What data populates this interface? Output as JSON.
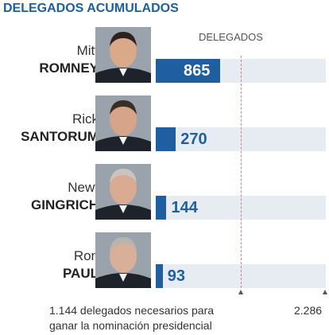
{
  "header": {
    "title": "DELEGADOS ACUMULADOS",
    "column_label": "DELEGADOS"
  },
  "footer": {
    "threshold_line1": "1.144 delegados necesarios para",
    "threshold_line2": "ganar la nominación presidencial",
    "total_label": "2.286"
  },
  "chart_data": {
    "type": "bar",
    "title": "DELEGADOS ACUMULADOS",
    "ylabel": "DELEGADOS",
    "categories": [
      "Mitt ROMNEY",
      "Rick SANTORUM",
      "Newt GINGRICH",
      "Ron PAUL"
    ],
    "values": [
      865,
      270,
      144,
      93
    ],
    "value_labels": [
      "865",
      "270",
      "144",
      "93"
    ],
    "ylim": [
      0,
      2286
    ],
    "threshold": 1144,
    "orientation": "horizontal",
    "grid": false
  },
  "candidates": [
    {
      "first": "Mitt",
      "last": "ROMNEY"
    },
    {
      "first": "Rick",
      "last": "SANTORUM"
    },
    {
      "first": "Newt",
      "last": "GINGRICH"
    },
    {
      "first": "Ron",
      "last": "PAUL"
    }
  ],
  "colors": {
    "bar": "#1f5fa0",
    "track": "#e6ecf1",
    "threshold": "#d98080",
    "title": "#1f5fa0"
  }
}
